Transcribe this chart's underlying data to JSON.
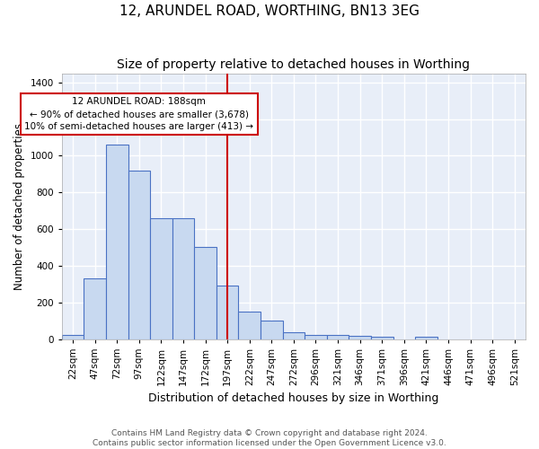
{
  "title": "12, ARUNDEL ROAD, WORTHING, BN13 3EG",
  "subtitle": "Size of property relative to detached houses in Worthing",
  "xlabel": "Distribution of detached houses by size in Worthing",
  "ylabel": "Number of detached properties",
  "categories": [
    "22sqm",
    "47sqm",
    "72sqm",
    "97sqm",
    "122sqm",
    "147sqm",
    "172sqm",
    "197sqm",
    "222sqm",
    "247sqm",
    "272sqm",
    "296sqm",
    "321sqm",
    "346sqm",
    "371sqm",
    "396sqm",
    "421sqm",
    "446sqm",
    "471sqm",
    "496sqm",
    "521sqm"
  ],
  "values": [
    20,
    330,
    1060,
    920,
    660,
    660,
    500,
    290,
    150,
    100,
    35,
    20,
    20,
    15,
    10,
    0,
    10,
    0,
    0,
    0,
    0
  ],
  "bar_color": "#c8d9f0",
  "bar_edge_color": "#4a72c4",
  "background_color": "#e8eef8",
  "grid_color": "#ffffff",
  "vline_x_index": 7,
  "vline_color": "#cc0000",
  "annotation_line1": "12 ARUNDEL ROAD: 188sqm",
  "annotation_line2": "← 90% of detached houses are smaller (3,678)",
  "annotation_line3": "10% of semi-detached houses are larger (413) →",
  "annotation_box_color": "#ffffff",
  "annotation_box_edge": "#cc0000",
  "ylim": [
    0,
    1450
  ],
  "yticks": [
    0,
    200,
    400,
    600,
    800,
    1000,
    1200,
    1400
  ],
  "footer_text": "Contains HM Land Registry data © Crown copyright and database right 2024.\nContains public sector information licensed under the Open Government Licence v3.0.",
  "title_fontsize": 11,
  "subtitle_fontsize": 10,
  "xlabel_fontsize": 9,
  "ylabel_fontsize": 8.5,
  "tick_fontsize": 7.5,
  "annotation_fontsize": 7.5,
  "footer_fontsize": 6.5
}
